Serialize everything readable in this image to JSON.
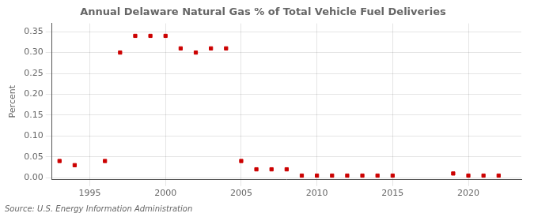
{
  "chart_data": {
    "type": "scatter",
    "title": "Annual Delaware Natural Gas % of Total Vehicle Fuel Deliveries",
    "y_label": "Percent",
    "annotations": [
      "Source: U.S. Energy Information Administration"
    ],
    "x": [
      1993,
      1994,
      1996,
      1997,
      1998,
      1999,
      2000,
      2001,
      2002,
      2003,
      2004,
      2005,
      2006,
      2007,
      2008,
      2009,
      2010,
      2011,
      2012,
      2013,
      2014,
      2015,
      2019,
      2020,
      2021,
      2022
    ],
    "values": [
      0.04,
      0.03,
      0.04,
      0.3,
      0.34,
      0.34,
      0.34,
      0.31,
      0.3,
      0.31,
      0.31,
      0.04,
      0.02,
      0.02,
      0.02,
      0.005,
      0.005,
      0.005,
      0.005,
      0.005,
      0.005,
      0.005,
      0.01,
      0.005,
      0.005,
      0.005
    ],
    "color": "#cc0000",
    "marker": "square",
    "xlim": [
      1992.5,
      2023.5
    ],
    "xticks": [
      1995,
      2000,
      2005,
      2010,
      2015,
      2020
    ],
    "ylim": [
      -0.005,
      0.37
    ],
    "yticks": [
      {
        "value": 0.0,
        "label": "0.00"
      },
      0.05,
      {
        "value": 0.1,
        "label": "0.10"
      },
      0.15,
      {
        "value": 0.2,
        "label": "0.20"
      },
      0.25,
      {
        "value": 0.3,
        "label": "0.30"
      },
      0.35
    ],
    "grid": true
  }
}
